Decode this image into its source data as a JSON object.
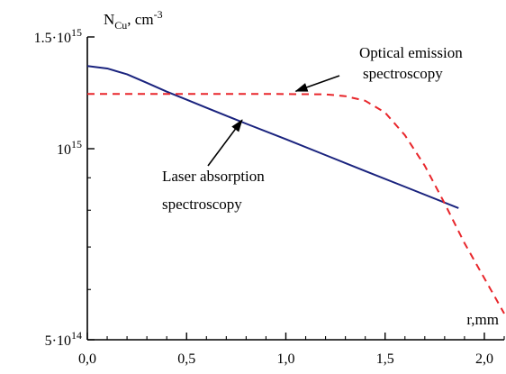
{
  "chart_data": {
    "type": "line",
    "title": "",
    "xlabel": "r,mm",
    "ylabel": {
      "main": "N",
      "sub": "Cu",
      "unit": ", cm",
      "exp": "-3"
    },
    "xlim": [
      0.0,
      2.1
    ],
    "ylim": [
      500000000000000.0,
      1500000000000000.0
    ],
    "y_scale": "log",
    "grid": false,
    "x_ticks": [
      {
        "value": 0.0,
        "label": "0,0"
      },
      {
        "value": 0.5,
        "label": "0,5"
      },
      {
        "value": 1.0,
        "label": "1,0"
      },
      {
        "value": 1.5,
        "label": "1,5"
      },
      {
        "value": 2.0,
        "label": "2,0"
      }
    ],
    "y_ticks": [
      {
        "value": 1500000000000000.0,
        "mantissa": "1.5",
        "base": "·10",
        "exp": "15"
      },
      {
        "value": 1000000000000000.0,
        "mantissa": "",
        "base": "10",
        "exp": "15"
      },
      {
        "value": 500000000000000.0,
        "mantissa": "5",
        "base": "·10",
        "exp": "14"
      }
    ],
    "y_minor_ticks": [
      600000000000000.0,
      700000000000000.0,
      800000000000000.0,
      900000000000000.0
    ],
    "x_minor_ticks": [
      0.1,
      0.2,
      0.3,
      0.4,
      0.6,
      0.7,
      0.8,
      0.9,
      1.1,
      1.2,
      1.3,
      1.4,
      1.6,
      1.7,
      1.8,
      1.9,
      2.1
    ],
    "series": [
      {
        "label": "Laser absorption spectroscopy",
        "color": "#1a237e",
        "dash": "solid",
        "x": [
          0.0,
          0.1,
          0.2,
          0.3,
          0.4,
          0.5,
          0.6,
          0.8,
          1.0,
          1.2,
          1.4,
          1.6,
          1.87
        ],
        "y": [
          1350000000000000.0,
          1338000000000000.0,
          1310000000000000.0,
          1270000000000000.0,
          1230000000000000.0,
          1195000000000000.0,
          1160000000000000.0,
          1095000000000000.0,
          1035000000000000.0,
          977000000000000.0,
          922000000000000.0,
          871000000000000.0,
          806000000000000.0
        ]
      },
      {
        "label": "Optical emission spectroscopy",
        "color": "#e8262b",
        "dash": "dashed",
        "x": [
          0.0,
          0.3,
          0.6,
          0.9,
          1.2,
          1.3,
          1.4,
          1.5,
          1.6,
          1.7,
          1.8,
          1.9,
          2.0,
          2.1
        ],
        "y": [
          1220000000000000.0,
          1220000000000000.0,
          1220000000000000.0,
          1220000000000000.0,
          1218000000000000.0,
          1210000000000000.0,
          1190000000000000.0,
          1140000000000000.0,
          1050000000000000.0,
          940000000000000.0,
          820000000000000.0,
          710000000000000.0,
          625000000000000.0,
          550000000000000.0
        ]
      }
    ],
    "annotations": [
      {
        "id": "optical",
        "lines": [
          "Optical emission",
          "spectroscopy"
        ],
        "arrow_to": [
          1.05,
          1232000000000000.0
        ]
      },
      {
        "id": "laser",
        "lines": [
          "Laser absorption",
          "spectroscopy"
        ],
        "arrow_to": [
          0.78,
          1110000000000000.0
        ]
      }
    ]
  }
}
